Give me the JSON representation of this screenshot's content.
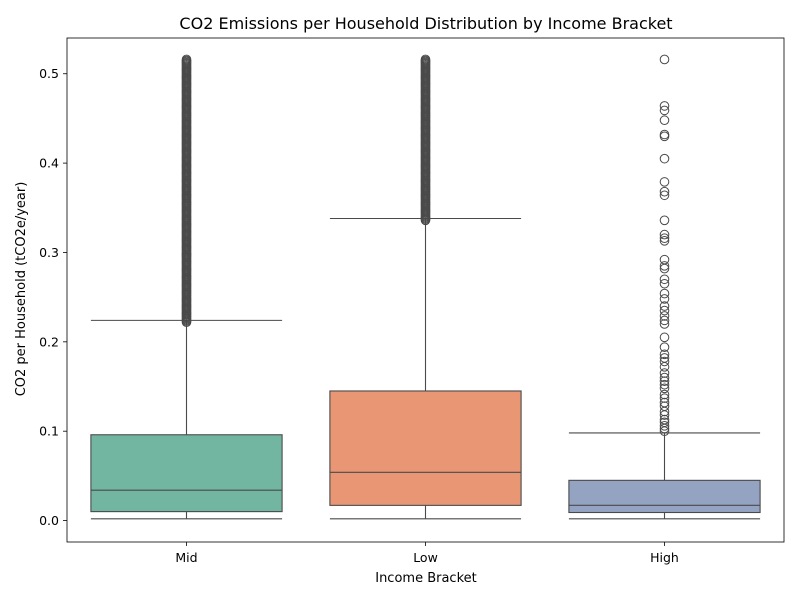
{
  "chart_data": {
    "type": "box",
    "title": "CO2 Emissions per Household Distribution by Income Bracket",
    "xlabel": "Income Bracket",
    "ylabel": "CO2 per Household (tCO2e/year)",
    "ylim": [
      -0.024,
      0.54
    ],
    "yticks": [
      0.0,
      0.1,
      0.2,
      0.3,
      0.4,
      0.5
    ],
    "ytick_labels": [
      "0.0",
      "0.1",
      "0.2",
      "0.3",
      "0.4",
      "0.5"
    ],
    "grid": false,
    "categories": [
      "Mid",
      "Low",
      "High"
    ],
    "series": [
      {
        "category": "Mid",
        "color": "#72b6a1",
        "whisker_low": 0.002,
        "q1": 0.01,
        "median": 0.034,
        "q3": 0.096,
        "whisker_high": 0.224,
        "outlier_range": [
          0.222,
          0.516
        ],
        "outliers": []
      },
      {
        "category": "Low",
        "color": "#e99675",
        "whisker_low": 0.002,
        "q1": 0.017,
        "median": 0.054,
        "q3": 0.145,
        "whisker_high": 0.338,
        "outlier_range": [
          0.336,
          0.516
        ],
        "outliers": []
      },
      {
        "category": "High",
        "color": "#95a3c3",
        "whisker_low": 0.002,
        "q1": 0.009,
        "median": 0.017,
        "q3": 0.045,
        "whisker_high": 0.098,
        "outlier_range": null,
        "outliers": [
          0.1,
          0.103,
          0.106,
          0.11,
          0.113,
          0.118,
          0.122,
          0.128,
          0.132,
          0.137,
          0.141,
          0.148,
          0.152,
          0.156,
          0.16,
          0.165,
          0.172,
          0.178,
          0.182,
          0.186,
          0.194,
          0.205,
          0.22,
          0.224,
          0.229,
          0.235,
          0.24,
          0.248,
          0.254,
          0.265,
          0.27,
          0.282,
          0.285,
          0.292,
          0.313,
          0.316,
          0.32,
          0.336,
          0.364,
          0.368,
          0.379,
          0.405,
          0.43,
          0.432,
          0.448,
          0.459,
          0.464,
          0.516
        ]
      }
    ]
  }
}
